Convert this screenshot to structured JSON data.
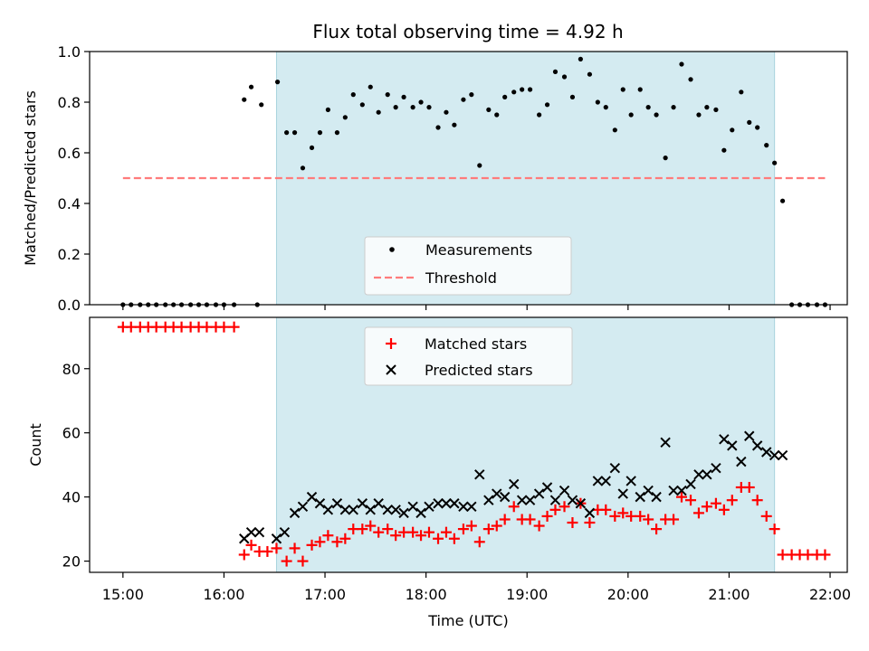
{
  "chart_data": [
    {
      "type": "scatter",
      "title": "Flux total observing time = 4.92 h",
      "xlabel": "",
      "ylabel": "Matched/Predicted stars",
      "ylim": [
        0,
        1.0
      ],
      "yticks": [
        "0.0",
        "0.2",
        "0.4",
        "0.6",
        "0.8",
        "1.0"
      ],
      "yticks_values": [
        0,
        0.2,
        0.4,
        0.6,
        0.8,
        1.0
      ],
      "xlim_hours": [
        14.67,
        22.17
      ],
      "shaded_hours": [
        16.52,
        21.45
      ],
      "shade_color": "#d4ebf1",
      "legend_position": "lower-center",
      "series": [
        {
          "name": "Measurements",
          "marker": "dot",
          "color": "#000000",
          "points": [
            [
              15.0,
              0
            ],
            [
              15.08,
              0
            ],
            [
              15.17,
              0
            ],
            [
              15.25,
              0
            ],
            [
              15.33,
              0
            ],
            [
              15.42,
              0
            ],
            [
              15.5,
              0
            ],
            [
              15.58,
              0
            ],
            [
              15.67,
              0
            ],
            [
              15.75,
              0
            ],
            [
              15.83,
              0
            ],
            [
              15.92,
              0
            ],
            [
              16.0,
              0
            ],
            [
              16.1,
              0
            ],
            [
              16.33,
              0
            ],
            [
              16.2,
              0.81
            ],
            [
              16.27,
              0.86
            ],
            [
              16.37,
              0.79
            ],
            [
              16.53,
              0.88
            ],
            [
              16.62,
              0.68
            ],
            [
              16.7,
              0.68
            ],
            [
              16.78,
              0.54
            ],
            [
              16.87,
              0.62
            ],
            [
              16.95,
              0.68
            ],
            [
              17.03,
              0.77
            ],
            [
              17.12,
              0.68
            ],
            [
              17.2,
              0.74
            ],
            [
              17.28,
              0.83
            ],
            [
              17.37,
              0.79
            ],
            [
              17.45,
              0.86
            ],
            [
              17.53,
              0.76
            ],
            [
              17.62,
              0.83
            ],
            [
              17.7,
              0.78
            ],
            [
              17.78,
              0.82
            ],
            [
              17.87,
              0.78
            ],
            [
              17.95,
              0.8
            ],
            [
              18.03,
              0.78
            ],
            [
              18.12,
              0.7
            ],
            [
              18.2,
              0.76
            ],
            [
              18.28,
              0.71
            ],
            [
              18.37,
              0.81
            ],
            [
              18.45,
              0.83
            ],
            [
              18.53,
              0.55
            ],
            [
              18.62,
              0.77
            ],
            [
              18.7,
              0.75
            ],
            [
              18.78,
              0.82
            ],
            [
              18.87,
              0.84
            ],
            [
              18.95,
              0.85
            ],
            [
              19.03,
              0.85
            ],
            [
              19.12,
              0.75
            ],
            [
              19.2,
              0.79
            ],
            [
              19.28,
              0.92
            ],
            [
              19.37,
              0.9
            ],
            [
              19.45,
              0.82
            ],
            [
              19.53,
              0.97
            ],
            [
              19.62,
              0.91
            ],
            [
              19.7,
              0.8
            ],
            [
              19.78,
              0.78
            ],
            [
              19.87,
              0.69
            ],
            [
              19.95,
              0.85
            ],
            [
              20.03,
              0.75
            ],
            [
              20.12,
              0.85
            ],
            [
              20.2,
              0.78
            ],
            [
              20.28,
              0.75
            ],
            [
              20.37,
              0.58
            ],
            [
              20.45,
              0.78
            ],
            [
              20.53,
              0.95
            ],
            [
              20.62,
              0.89
            ],
            [
              20.7,
              0.75
            ],
            [
              20.78,
              0.78
            ],
            [
              20.87,
              0.77
            ],
            [
              20.95,
              0.61
            ],
            [
              21.03,
              0.69
            ],
            [
              21.12,
              0.84
            ],
            [
              21.2,
              0.72
            ],
            [
              21.28,
              0.7
            ],
            [
              21.37,
              0.63
            ],
            [
              21.45,
              0.56
            ],
            [
              21.53,
              0.41
            ],
            [
              21.62,
              0
            ],
            [
              21.7,
              0
            ],
            [
              21.78,
              0
            ],
            [
              21.87,
              0
            ],
            [
              21.95,
              0
            ]
          ]
        },
        {
          "name": "Threshold",
          "marker": "dashed-line",
          "color": "#ff7b7b",
          "points": [
            [
              15.0,
              0.5
            ],
            [
              21.95,
              0.5
            ]
          ]
        }
      ]
    },
    {
      "type": "scatter",
      "title": "",
      "xlabel": "Time (UTC)",
      "ylabel": "Count",
      "ylim": [
        16.5,
        96
      ],
      "yticks": [
        "20",
        "40",
        "60",
        "80"
      ],
      "yticks_values": [
        20,
        40,
        60,
        80
      ],
      "xticks": [
        "15:00",
        "16:00",
        "17:00",
        "18:00",
        "19:00",
        "20:00",
        "21:00",
        "22:00"
      ],
      "xticks_hours": [
        15,
        16,
        17,
        18,
        19,
        20,
        21,
        22
      ],
      "xlim_hours": [
        14.67,
        22.17
      ],
      "shaded_hours": [
        16.52,
        21.45
      ],
      "shade_color": "#d4ebf1",
      "legend_position": "upper-center",
      "series": [
        {
          "name": "Matched stars",
          "marker": "plus",
          "color": "#ff0000",
          "points": [
            [
              15.0,
              93
            ],
            [
              15.08,
              93
            ],
            [
              15.17,
              93
            ],
            [
              15.25,
              93
            ],
            [
              15.33,
              93
            ],
            [
              15.42,
              93
            ],
            [
              15.5,
              93
            ],
            [
              15.58,
              93
            ],
            [
              15.67,
              93
            ],
            [
              15.75,
              93
            ],
            [
              15.83,
              93
            ],
            [
              15.92,
              93
            ],
            [
              16.0,
              93
            ],
            [
              16.1,
              93
            ],
            [
              16.2,
              22
            ],
            [
              16.27,
              25
            ],
            [
              16.35,
              23
            ],
            [
              16.43,
              23
            ],
            [
              16.52,
              24
            ],
            [
              16.62,
              20
            ],
            [
              16.7,
              24
            ],
            [
              16.78,
              20
            ],
            [
              16.87,
              25
            ],
            [
              16.95,
              26
            ],
            [
              17.03,
              28
            ],
            [
              17.12,
              26
            ],
            [
              17.2,
              27
            ],
            [
              17.28,
              30
            ],
            [
              17.37,
              30
            ],
            [
              17.45,
              31
            ],
            [
              17.53,
              29
            ],
            [
              17.62,
              30
            ],
            [
              17.7,
              28
            ],
            [
              17.78,
              29
            ],
            [
              17.87,
              29
            ],
            [
              17.95,
              28
            ],
            [
              18.03,
              29
            ],
            [
              18.12,
              27
            ],
            [
              18.2,
              29
            ],
            [
              18.28,
              27
            ],
            [
              18.37,
              30
            ],
            [
              18.45,
              31
            ],
            [
              18.53,
              26
            ],
            [
              18.62,
              30
            ],
            [
              18.7,
              31
            ],
            [
              18.78,
              33
            ],
            [
              18.87,
              37
            ],
            [
              18.95,
              33
            ],
            [
              19.03,
              33
            ],
            [
              19.12,
              31
            ],
            [
              19.2,
              34
            ],
            [
              19.28,
              36
            ],
            [
              19.37,
              37
            ],
            [
              19.45,
              32
            ],
            [
              19.53,
              38
            ],
            [
              19.62,
              32
            ],
            [
              19.7,
              36
            ],
            [
              19.78,
              36
            ],
            [
              19.87,
              34
            ],
            [
              19.95,
              35
            ],
            [
              20.03,
              34
            ],
            [
              20.12,
              34
            ],
            [
              20.2,
              33
            ],
            [
              20.28,
              30
            ],
            [
              20.37,
              33
            ],
            [
              20.45,
              33
            ],
            [
              20.53,
              40
            ],
            [
              20.62,
              39
            ],
            [
              20.7,
              35
            ],
            [
              20.78,
              37
            ],
            [
              20.87,
              38
            ],
            [
              20.95,
              36
            ],
            [
              21.03,
              39
            ],
            [
              21.12,
              43
            ],
            [
              21.2,
              43
            ],
            [
              21.28,
              39
            ],
            [
              21.37,
              34
            ],
            [
              21.45,
              30
            ],
            [
              21.53,
              22
            ],
            [
              21.62,
              22
            ],
            [
              21.7,
              22
            ],
            [
              21.78,
              22
            ],
            [
              21.87,
              22
            ],
            [
              21.95,
              22
            ]
          ]
        },
        {
          "name": "Predicted stars",
          "marker": "x",
          "color": "#000000",
          "points": [
            [
              16.2,
              27
            ],
            [
              16.27,
              29
            ],
            [
              16.35,
              29
            ],
            [
              16.52,
              27
            ],
            [
              16.6,
              29
            ],
            [
              16.7,
              35
            ],
            [
              16.78,
              37
            ],
            [
              16.87,
              40
            ],
            [
              16.95,
              38
            ],
            [
              17.03,
              36
            ],
            [
              17.12,
              38
            ],
            [
              17.2,
              36
            ],
            [
              17.28,
              36
            ],
            [
              17.37,
              38
            ],
            [
              17.45,
              36
            ],
            [
              17.53,
              38
            ],
            [
              17.62,
              36
            ],
            [
              17.7,
              36
            ],
            [
              17.78,
              35
            ],
            [
              17.87,
              37
            ],
            [
              17.95,
              35
            ],
            [
              18.03,
              37
            ],
            [
              18.12,
              38
            ],
            [
              18.2,
              38
            ],
            [
              18.28,
              38
            ],
            [
              18.37,
              37
            ],
            [
              18.45,
              37
            ],
            [
              18.53,
              47
            ],
            [
              18.62,
              39
            ],
            [
              18.7,
              41
            ],
            [
              18.78,
              40
            ],
            [
              18.87,
              44
            ],
            [
              18.95,
              39
            ],
            [
              19.03,
              39
            ],
            [
              19.12,
              41
            ],
            [
              19.2,
              43
            ],
            [
              19.28,
              39
            ],
            [
              19.37,
              42
            ],
            [
              19.45,
              39
            ],
            [
              19.53,
              38
            ],
            [
              19.62,
              35
            ],
            [
              19.7,
              45
            ],
            [
              19.78,
              45
            ],
            [
              19.87,
              49
            ],
            [
              19.95,
              41
            ],
            [
              20.03,
              45
            ],
            [
              20.12,
              40
            ],
            [
              20.2,
              42
            ],
            [
              20.28,
              40
            ],
            [
              20.37,
              57
            ],
            [
              20.45,
              42
            ],
            [
              20.53,
              42
            ],
            [
              20.62,
              44
            ],
            [
              20.7,
              47
            ],
            [
              20.78,
              47
            ],
            [
              20.87,
              49
            ],
            [
              20.95,
              58
            ],
            [
              21.03,
              56
            ],
            [
              21.12,
              51
            ],
            [
              21.2,
              59
            ],
            [
              21.28,
              56
            ],
            [
              21.37,
              54
            ],
            [
              21.45,
              53
            ],
            [
              21.53,
              53
            ]
          ]
        }
      ]
    }
  ]
}
